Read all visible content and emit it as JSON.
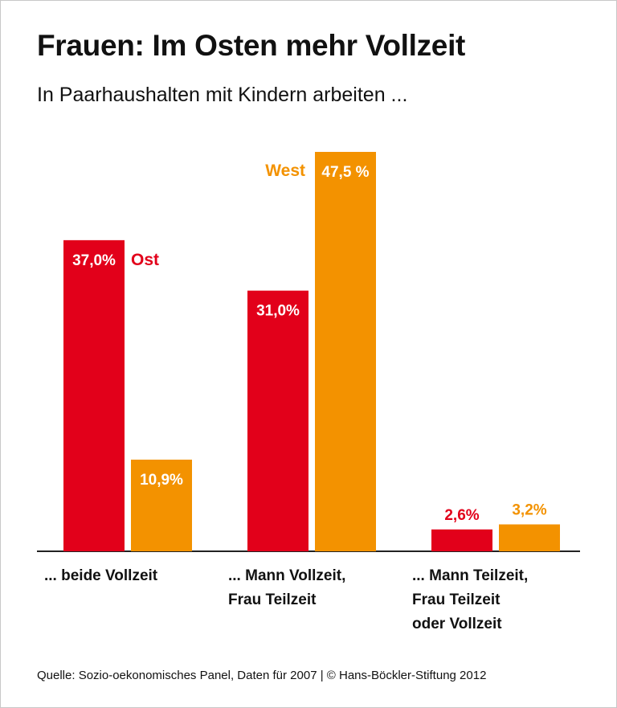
{
  "title": "Frauen: Im Osten mehr Vollzeit",
  "subtitle": "In Paarhaushalten mit Kindern arbeiten ...",
  "source": "Quelle: Sozio-oekonomisches Panel, Daten für 2007 | © Hans-Böckler-Stiftung 2012",
  "colors": {
    "ost": "#e2001a",
    "west": "#f39200",
    "axis": "#222222"
  },
  "chart_data": {
    "type": "bar",
    "categories": [
      [
        "... beide Vollzeit"
      ],
      [
        "... Mann Vollzeit,",
        "Frau Teilzeit"
      ],
      [
        "... Mann Teilzeit,",
        "Frau Teilzeit",
        "oder Vollzeit"
      ]
    ],
    "series": [
      {
        "name": "Ost",
        "values": [
          37.0,
          31.0,
          2.6
        ],
        "labels": [
          "37,0%",
          "31,0%",
          "2,6%"
        ]
      },
      {
        "name": "West",
        "values": [
          10.9,
          47.5,
          3.2
        ],
        "labels": [
          "10,9%",
          "47,5 %",
          "3,2%"
        ]
      }
    ],
    "ylim": [
      0,
      47.5
    ],
    "grid": false,
    "value_labels": true
  }
}
